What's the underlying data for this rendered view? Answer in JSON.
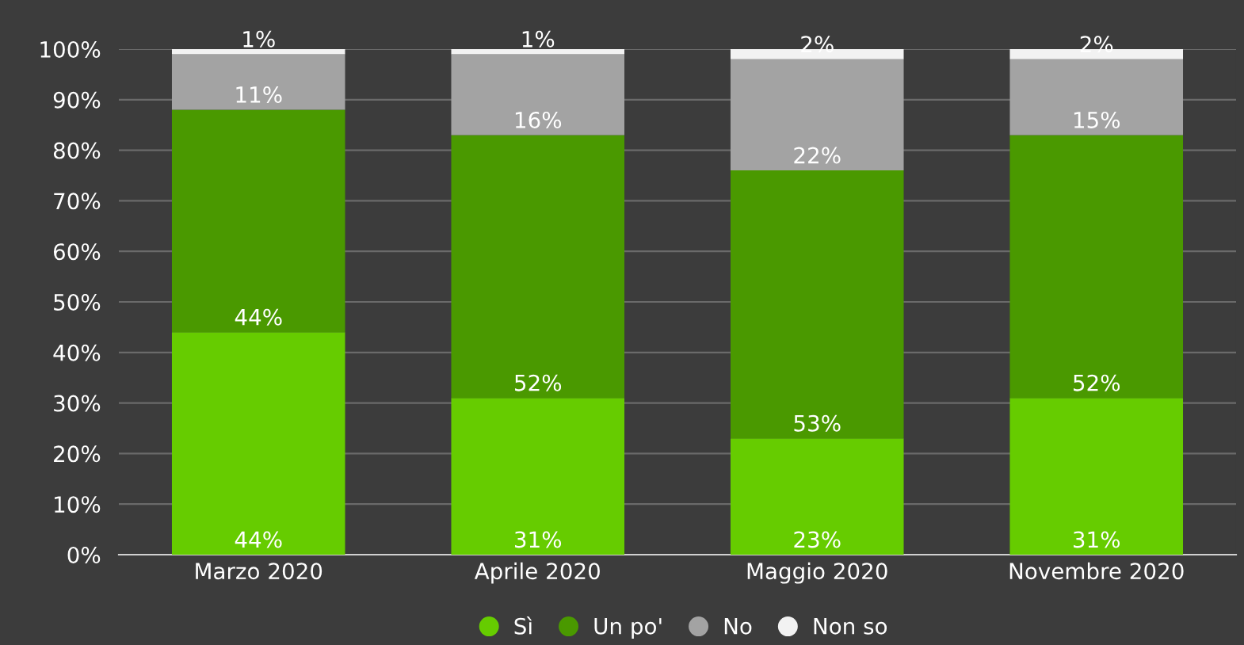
{
  "chart_data": {
    "type": "bar",
    "stacked": true,
    "categories": [
      "Marzo 2020",
      "Aprile 2020",
      "Maggio 2020",
      "Novembre 2020"
    ],
    "series": [
      {
        "name": "Sì",
        "color": "#66cc00",
        "values": [
          44,
          31,
          23,
          31
        ],
        "value_labels": [
          "44%",
          "31%",
          "23%",
          "31%"
        ]
      },
      {
        "name": "Un po'",
        "color": "#4a9900",
        "values": [
          44,
          52,
          53,
          52
        ],
        "value_labels": [
          "44%",
          "52%",
          "53%",
          "52%"
        ]
      },
      {
        "name": "No",
        "color": "#a3a3a3",
        "values": [
          11,
          16,
          22,
          15
        ],
        "value_labels": [
          "11%",
          "16%",
          "22%",
          "15%"
        ]
      },
      {
        "name": "Non so",
        "color": "#f2f2f2",
        "values": [
          1,
          1,
          2,
          2
        ],
        "value_labels": [
          "1%",
          "1%",
          "2%",
          "2%"
        ]
      }
    ],
    "ylim": [
      0,
      100
    ],
    "yticks": [
      {
        "value": 0,
        "label": "0%"
      },
      {
        "value": 10,
        "label": "10%"
      },
      {
        "value": 20,
        "label": "20%"
      },
      {
        "value": 30,
        "label": "30%"
      },
      {
        "value": 40,
        "label": "40%"
      },
      {
        "value": 50,
        "label": "50%"
      },
      {
        "value": 60,
        "label": "60%"
      },
      {
        "value": 70,
        "label": "70%"
      },
      {
        "value": 80,
        "label": "80%"
      },
      {
        "value": 90,
        "label": "90%"
      },
      {
        "value": 100,
        "label": "100%"
      }
    ],
    "grid": "y",
    "legend": "bottom"
  }
}
